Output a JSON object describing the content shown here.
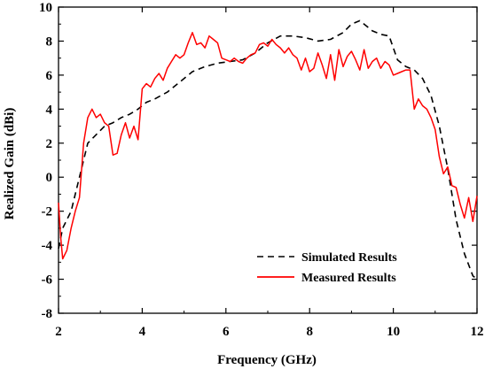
{
  "chart_data": {
    "type": "line",
    "title": "",
    "xlabel": "Frequency (GHz)",
    "ylabel": "Realized Gain (dBi)",
    "xlim": [
      2,
      12
    ],
    "ylim": [
      -8,
      10
    ],
    "xticks": [
      2,
      4,
      6,
      8,
      10,
      12
    ],
    "yticks": [
      -8,
      -6,
      -4,
      -2,
      0,
      2,
      4,
      6,
      8,
      10
    ],
    "grid": false,
    "legend_position": "bottom-right",
    "series": [
      {
        "name": "Simulated Results",
        "color": "#000000",
        "style": "dashed",
        "x": [
          2.0,
          2.1,
          2.3,
          2.5,
          2.7,
          2.9,
          3.1,
          3.3,
          3.5,
          3.7,
          3.9,
          4.1,
          4.3,
          4.6,
          4.9,
          5.2,
          5.5,
          5.8,
          6.1,
          6.4,
          6.7,
          7.0,
          7.3,
          7.6,
          7.9,
          8.2,
          8.5,
          8.8,
          9.0,
          9.2,
          9.3,
          9.5,
          9.7,
          9.9,
          10.1,
          10.3,
          10.5,
          10.7,
          10.9,
          11.1,
          11.3,
          11.5,
          11.7,
          11.9,
          12.0
        ],
        "y": [
          -4.2,
          -3.0,
          -2.0,
          0.0,
          2.0,
          2.5,
          3.0,
          3.2,
          3.5,
          3.7,
          4.0,
          4.4,
          4.6,
          5.0,
          5.6,
          6.2,
          6.5,
          6.7,
          6.8,
          6.9,
          7.3,
          7.9,
          8.3,
          8.3,
          8.2,
          8.0,
          8.1,
          8.5,
          9.0,
          9.2,
          9.0,
          8.6,
          8.4,
          8.3,
          6.9,
          6.5,
          6.3,
          5.8,
          4.8,
          3.0,
          0.5,
          -2.5,
          -4.5,
          -5.8,
          -6.0
        ]
      },
      {
        "name": "Measured Results",
        "color": "#ff0000",
        "style": "solid",
        "x": [
          2.0,
          2.05,
          2.1,
          2.2,
          2.3,
          2.4,
          2.5,
          2.6,
          2.7,
          2.8,
          2.9,
          3.0,
          3.1,
          3.2,
          3.3,
          3.4,
          3.5,
          3.6,
          3.7,
          3.8,
          3.9,
          4.0,
          4.1,
          4.2,
          4.3,
          4.4,
          4.5,
          4.6,
          4.7,
          4.8,
          4.9,
          5.0,
          5.1,
          5.2,
          5.3,
          5.4,
          5.5,
          5.6,
          5.7,
          5.8,
          5.9,
          6.0,
          6.1,
          6.2,
          6.3,
          6.4,
          6.5,
          6.6,
          6.7,
          6.8,
          6.9,
          7.0,
          7.1,
          7.2,
          7.3,
          7.4,
          7.5,
          7.6,
          7.7,
          7.8,
          7.9,
          8.0,
          8.1,
          8.2,
          8.3,
          8.4,
          8.5,
          8.6,
          8.7,
          8.8,
          8.9,
          9.0,
          9.1,
          9.2,
          9.3,
          9.4,
          9.5,
          9.6,
          9.7,
          9.8,
          9.9,
          10.0,
          10.1,
          10.2,
          10.3,
          10.4,
          10.5,
          10.6,
          10.7,
          10.8,
          10.9,
          11.0,
          11.1,
          11.2,
          11.3,
          11.4,
          11.5,
          11.6,
          11.7,
          11.8,
          11.9,
          12.0
        ],
        "y": [
          -1.5,
          -3.5,
          -4.8,
          -4.3,
          -3.0,
          -2.0,
          -1.2,
          2.0,
          3.5,
          4.0,
          3.5,
          3.7,
          3.2,
          3.0,
          1.3,
          1.4,
          2.5,
          3.2,
          2.3,
          3.0,
          2.2,
          5.2,
          5.5,
          5.3,
          5.8,
          6.1,
          5.7,
          6.4,
          6.8,
          7.2,
          7.0,
          7.2,
          7.9,
          8.5,
          7.8,
          7.9,
          7.6,
          8.3,
          8.1,
          7.9,
          7.0,
          6.9,
          6.8,
          7.0,
          6.8,
          6.7,
          7.0,
          7.2,
          7.3,
          7.8,
          7.9,
          7.7,
          8.1,
          7.8,
          7.6,
          7.3,
          7.6,
          7.2,
          7.0,
          6.3,
          7.0,
          6.2,
          6.4,
          7.3,
          6.6,
          5.8,
          7.2,
          5.7,
          7.5,
          6.5,
          7.1,
          7.4,
          6.9,
          6.3,
          7.5,
          6.4,
          6.8,
          7.0,
          6.4,
          6.8,
          6.6,
          6.0,
          6.1,
          6.2,
          6.3,
          6.3,
          4.0,
          4.6,
          4.2,
          4.0,
          3.5,
          2.8,
          1.2,
          0.2,
          0.6,
          -0.5,
          -0.6,
          -1.6,
          -2.4,
          -1.2,
          -2.6,
          -1.1
        ]
      }
    ]
  }
}
